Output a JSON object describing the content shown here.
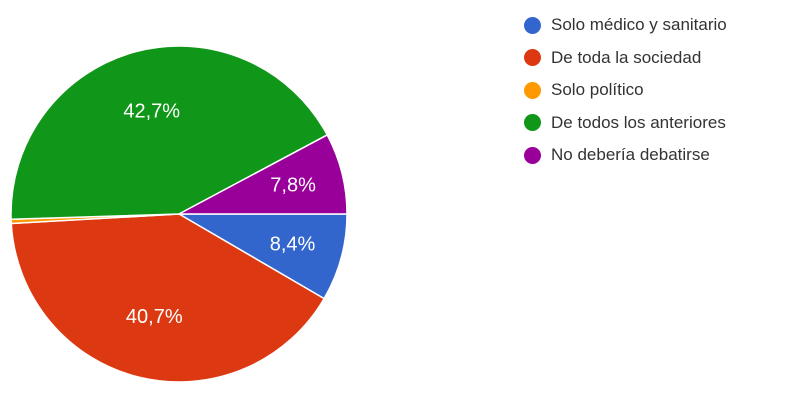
{
  "chart_data": {
    "type": "pie",
    "series": [
      {
        "name": "Solo médico y sanitario",
        "value": 8.4,
        "label": "8,4%",
        "color": "#3366cc"
      },
      {
        "name": "De toda la sociedad",
        "value": 40.7,
        "label": "40,7%",
        "color": "#dc3912"
      },
      {
        "name": "Solo político",
        "value": 0.4,
        "label": "",
        "color": "#ff9900"
      },
      {
        "name": "De todos los anteriores",
        "value": 42.7,
        "label": "42,7%",
        "color": "#109618"
      },
      {
        "name": "No debería debatirse",
        "value": 7.8,
        "label": "7,8%",
        "color": "#990099"
      }
    ],
    "legend_position": "right"
  }
}
